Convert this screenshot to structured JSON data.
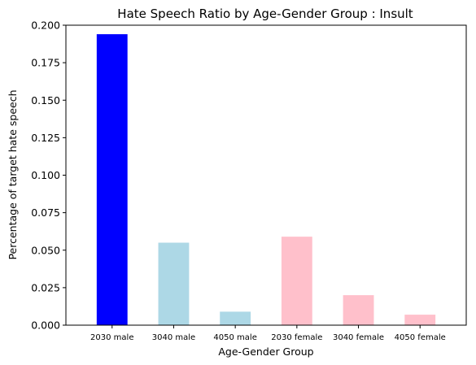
{
  "chart_data": {
    "type": "bar",
    "title": "Hate Speech Ratio by Age-Gender Group : Insult",
    "xlabel": "Age-Gender Group",
    "ylabel": "Percentage of target hate speech",
    "categories": [
      "2030 male",
      "3040 male",
      "4050 male",
      "2030 female",
      "3040 female",
      "4050 female"
    ],
    "values": [
      0.194,
      0.055,
      0.009,
      0.059,
      0.02,
      0.007
    ],
    "bar_colors": [
      "#0000ff",
      "#add8e6",
      "#add8e6",
      "#ffc0cb",
      "#ffc0cb",
      "#ffc0cb"
    ],
    "ylim": [
      0,
      0.2
    ],
    "yticks": [
      0.0,
      0.025,
      0.05,
      0.075,
      0.1,
      0.125,
      0.15,
      0.175,
      0.2
    ],
    "ytick_labels": [
      "0.000",
      "0.025",
      "0.050",
      "0.075",
      "0.100",
      "0.125",
      "0.150",
      "0.175",
      "0.200"
    ],
    "grid": false,
    "legend": "none"
  }
}
